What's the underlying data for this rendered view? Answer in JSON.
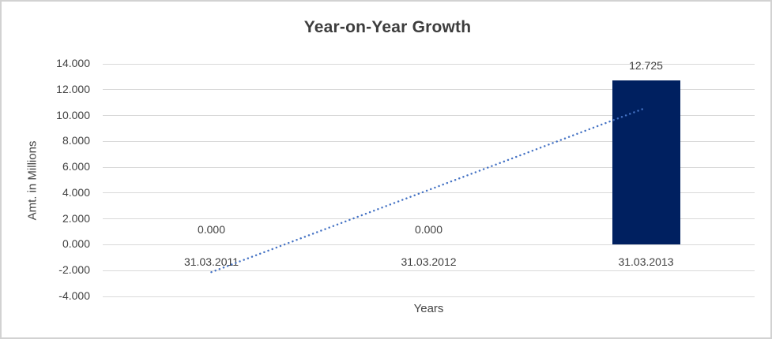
{
  "chart_data": {
    "type": "bar",
    "title": "Year-on-Year Growth",
    "xlabel": "Years",
    "ylabel": "Amt. in Millions",
    "categories": [
      "31.03.2011",
      "31.03.2012",
      "31.03.2013"
    ],
    "values": [
      0,
      0,
      12.725
    ],
    "data_labels": [
      "0.000",
      "0.000",
      "12.725"
    ],
    "ylim": [
      -4,
      14
    ],
    "y_tick_step": 2,
    "y_tick_labels": [
      "14.000",
      "12.000",
      "10.000",
      "8.000",
      "6.000",
      "4.000",
      "2.000",
      "0.000",
      "-2.000",
      "-4.000"
    ],
    "grid": true,
    "legend": "none",
    "trendline": {
      "type": "linear",
      "style": "dotted",
      "endpoint_values": [
        -2.12,
        10.6
      ],
      "spans_categories": [
        0,
        2
      ]
    },
    "colors": {
      "bar": "#002060",
      "trendline": "#4472C4",
      "gridline": "#d9d9d9",
      "text": "#404040"
    }
  }
}
